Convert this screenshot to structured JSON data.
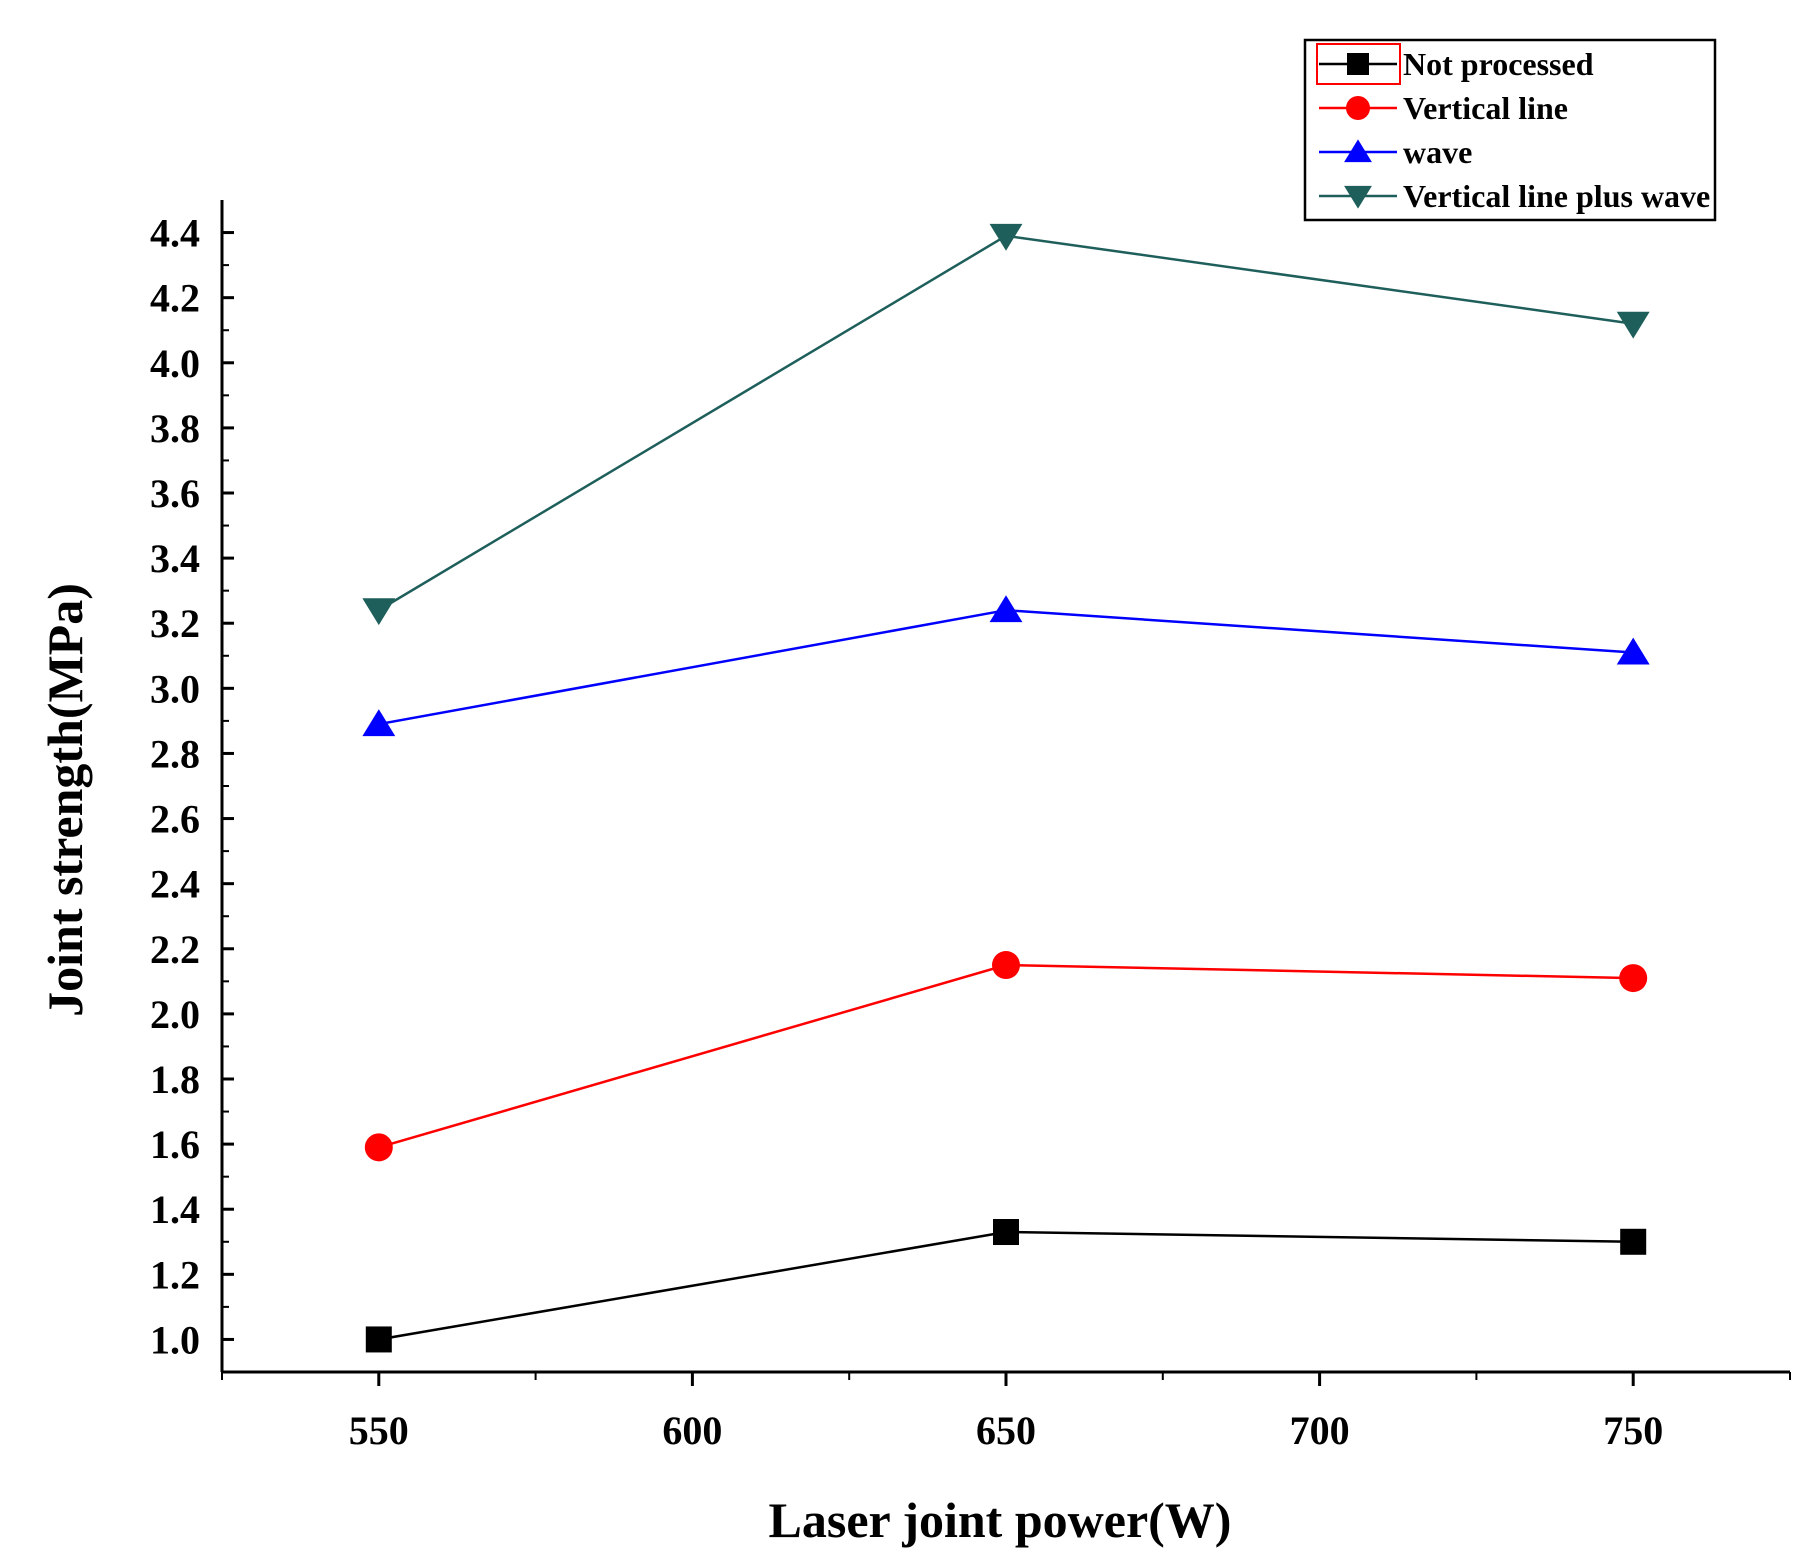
{
  "chart_data": {
    "type": "line",
    "title": "",
    "xlabel": "Laser joint power(W)",
    "ylabel": "Joint strength(MPa)",
    "xlim": [
      525,
      775
    ],
    "ylim": [
      0.9,
      4.5
    ],
    "xticks": [
      550,
      600,
      650,
      700,
      750
    ],
    "xtick_labels": [
      "550",
      "600",
      "650",
      "700",
      "750"
    ],
    "yticks": [
      1.0,
      1.2,
      1.4,
      1.6,
      1.8,
      2.0,
      2.2,
      2.4,
      2.6,
      2.8,
      3.0,
      3.2,
      3.4,
      3.6,
      3.8,
      4.0,
      4.2,
      4.4
    ],
    "ytick_labels": [
      "1.0",
      "1.2",
      "1.4",
      "1.6",
      "1.8",
      "2.0",
      "2.2",
      "2.4",
      "2.6",
      "2.8",
      "3.0",
      "3.2",
      "3.4",
      "3.6",
      "3.8",
      "4.0",
      "4.2",
      "4.4"
    ],
    "x": [
      550,
      650,
      750
    ],
    "grid": false,
    "legend_position": "top-right",
    "series": [
      {
        "name": "Not processed",
        "values": [
          1.0,
          1.33,
          1.3
        ],
        "color": "#000000",
        "marker": "square"
      },
      {
        "name": "Vertical line",
        "values": [
          1.59,
          2.15,
          2.11
        ],
        "color": "#ff0000",
        "marker": "circle"
      },
      {
        "name": "wave",
        "values": [
          2.89,
          3.24,
          3.11
        ],
        "color": "#0000ff",
        "marker": "triangle-up"
      },
      {
        "name": "Vertical line plus wave",
        "values": [
          3.24,
          4.39,
          4.12
        ],
        "color": "#1f5f5b",
        "marker": "triangle-down"
      }
    ]
  }
}
